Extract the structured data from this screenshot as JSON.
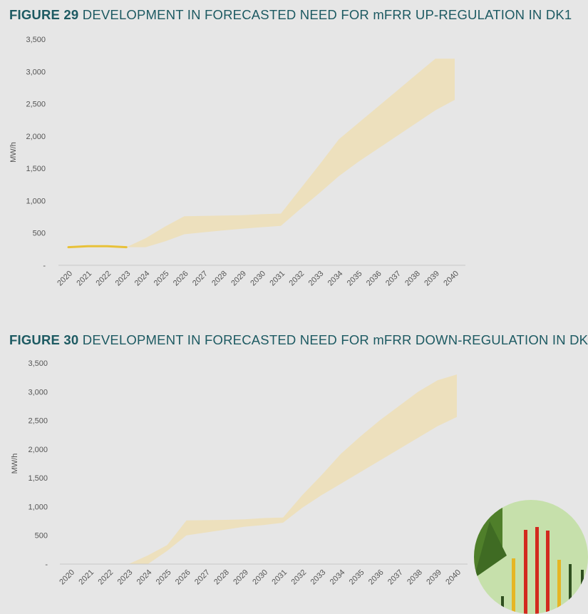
{
  "figures": [
    {
      "number": "FIGURE 29",
      "title": "DEVELOPMENT IN FORECASTED NEED FOR mFRR UP-REGULATION IN DK1"
    },
    {
      "number": "FIGURE 30",
      "title": "DEVELOPMENT IN FORECASTED NEED FOR mFRR DOWN-REGULATION IN DK1"
    }
  ],
  "colors": {
    "band": "#ede0bd",
    "history": "#e8c139",
    "axis": "#c8c8c8",
    "title": "#1d5a62",
    "background": "#e6e6e6"
  },
  "chart_data": [
    {
      "type": "area",
      "title": "DEVELOPMENT IN FORECASTED NEED FOR mFRR UP-REGULATION IN DK1",
      "ylabel": "MW/h",
      "xlabel": "",
      "ylim": [
        0,
        3500
      ],
      "yticks": [
        0,
        500,
        1000,
        1500,
        2000,
        2500,
        3000,
        3500
      ],
      "ytick_labels": [
        "-",
        "500",
        "1,000",
        "1,500",
        "2,000",
        "2,500",
        "3,000",
        "3,500"
      ],
      "categories": [
        "2020",
        "2021",
        "2022",
        "2023",
        "2024",
        "2025",
        "2026",
        "2027",
        "2028",
        "2029",
        "2030",
        "2031",
        "2032",
        "2033",
        "2034",
        "2035",
        "2036",
        "2037",
        "2038",
        "2039",
        "2040"
      ],
      "history": {
        "x": [
          "2020",
          "2021",
          "2022",
          "2023"
        ],
        "values": [
          280,
          295,
          295,
          280
        ]
      },
      "band": {
        "x": [
          "2023",
          "2024",
          "2025",
          "2026",
          "2027",
          "2028",
          "2029",
          "2030",
          "2031",
          "2032",
          "2033",
          "2034",
          "2035",
          "2036",
          "2037",
          "2038",
          "2039",
          "2040"
        ],
        "upper": [
          280,
          420,
          600,
          760,
          765,
          770,
          775,
          790,
          800,
          1180,
          1560,
          1950,
          2200,
          2450,
          2700,
          2950,
          3200,
          3200
        ],
        "lower": [
          280,
          280,
          370,
          480,
          510,
          540,
          565,
          590,
          610,
          870,
          1120,
          1380,
          1600,
          1800,
          2000,
          2200,
          2400,
          2560
        ]
      },
      "grid": false
    },
    {
      "type": "area",
      "title": "DEVELOPMENT IN FORECASTED NEED FOR mFRR DOWN-REGULATION IN DK1",
      "ylabel": "MW/h",
      "xlabel": "",
      "ylim": [
        0,
        3500
      ],
      "yticks": [
        0,
        500,
        1000,
        1500,
        2000,
        2500,
        3000,
        3500
      ],
      "ytick_labels": [
        "-",
        "500",
        "1,000",
        "1,500",
        "2,000",
        "2,500",
        "3,000",
        "3,500"
      ],
      "categories": [
        "2020",
        "2021",
        "2022",
        "2023",
        "2024",
        "2025",
        "2026",
        "2027",
        "2028",
        "2029",
        "2030",
        "2031",
        "2032",
        "2033",
        "2034",
        "2035",
        "2036",
        "2037",
        "2038",
        "2039",
        "2040"
      ],
      "band": {
        "x": [
          "2023",
          "2024",
          "2025",
          "2026",
          "2027",
          "2028",
          "2029",
          "2030",
          "2031",
          "2032",
          "2033",
          "2034",
          "2035",
          "2036",
          "2037",
          "2038",
          "2039",
          "2040"
        ],
        "upper": [
          0,
          150,
          330,
          760,
          765,
          770,
          780,
          800,
          810,
          1200,
          1550,
          1920,
          2220,
          2500,
          2750,
          3000,
          3200,
          3300
        ],
        "lower": [
          0,
          0,
          230,
          500,
          550,
          600,
          650,
          680,
          720,
          980,
          1200,
          1400,
          1600,
          1800,
          2000,
          2200,
          2400,
          2560
        ]
      },
      "grid": false
    }
  ]
}
